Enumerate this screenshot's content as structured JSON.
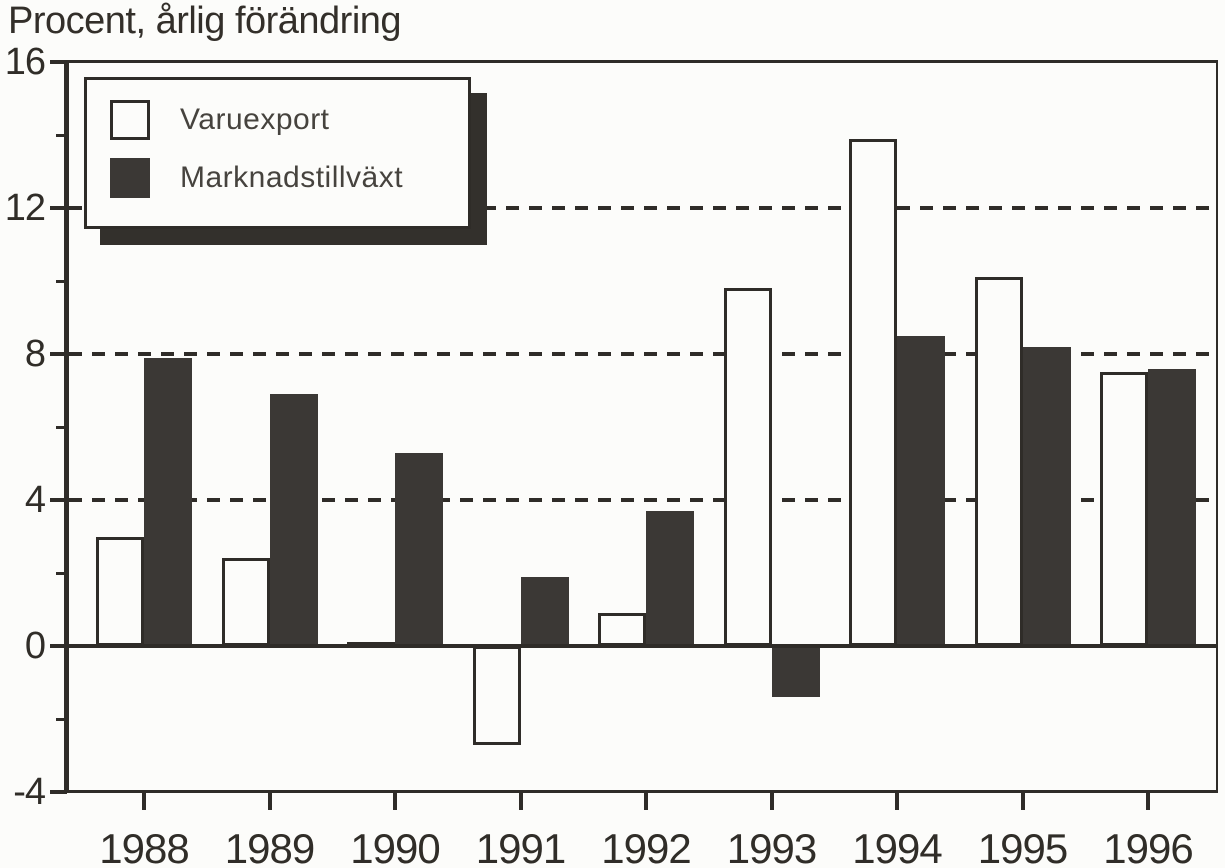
{
  "chart_data": {
    "type": "bar",
    "title": "Procent, årlig förändring",
    "categories": [
      "1988",
      "1989",
      "1990",
      "1991",
      "1992",
      "1993",
      "1994",
      "1995",
      "1996"
    ],
    "series": [
      {
        "name": "Varuexport",
        "style": "white",
        "values": [
          3.0,
          2.4,
          0.1,
          -2.7,
          0.9,
          9.8,
          13.9,
          10.1,
          7.5
        ]
      },
      {
        "name": "Marknadstillväxt",
        "style": "dark",
        "values": [
          7.9,
          6.9,
          5.3,
          1.9,
          3.7,
          -1.4,
          8.5,
          8.2,
          7.6
        ]
      }
    ],
    "xlabel": "",
    "ylabel": "Procent, årlig förändring",
    "ylim": [
      -4,
      16
    ],
    "yticks_major": [
      16,
      12,
      8,
      4,
      0,
      -4
    ],
    "yticks_minor": [
      14,
      10,
      6,
      2,
      -2
    ],
    "gridlines_dashed_at": [
      12,
      8,
      4
    ],
    "grid": "dashed-horizontal",
    "legend_position": "top-left",
    "colors": {
      "ink": "#2f2c28",
      "bar_dark": "#3b3835",
      "bar_white": "#fcfcfa",
      "background": "#fcfcfa"
    }
  }
}
